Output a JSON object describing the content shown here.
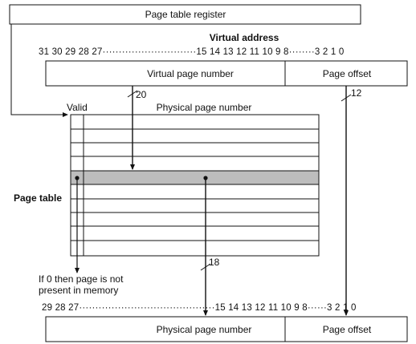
{
  "page_table_register": "Page table register",
  "virtual_address_title": "Virtual address",
  "virtual_bits": "31  30  29  28  27·····························15  14  13  12  11  10  9  8········3  2  1  0",
  "virtual_page_number": "Virtual page number",
  "page_offset_top": "Page offset",
  "bits_20": "20",
  "bits_12": "12",
  "valid": "Valid",
  "physical_page_number_header": "Physical page number",
  "page_table": "Page table",
  "bits_18": "18",
  "note_line1": "If 0 then page is not",
  "note_line2": "present in memory",
  "physical_bits": "29  28  27··········································15  14  13  12  11  10  9  8······3  2  1  0",
  "physical_page_number_bottom": "Physical page number",
  "page_offset_bottom": "Page offset",
  "colors": {
    "line": "#111111",
    "highlight": "#bdbdbd"
  }
}
